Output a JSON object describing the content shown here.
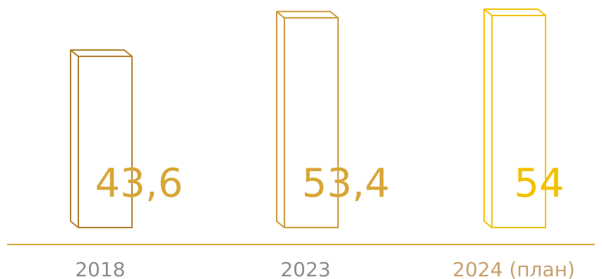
{
  "chart_data": {
    "type": "bar",
    "categories": [
      "2018",
      "2023",
      "2024 (план)"
    ],
    "values": [
      43.6,
      53.4,
      54
    ],
    "value_labels": [
      "43,6",
      "53,4",
      "54"
    ],
    "title": "",
    "xlabel": "",
    "ylabel": "",
    "ylim": [
      0,
      54
    ],
    "grid": false,
    "legend": "none",
    "style": "3d-outline-bars",
    "colors": {
      "bar_outline": [
        "#b07f2b",
        "#c99a3c",
        "#f2c100"
      ],
      "value_label": [
        "#d8a636",
        "#d8a636",
        "#f2c100"
      ],
      "category_label": [
        "#8c8c8c",
        "#8c8c8c",
        "#c8a06e"
      ],
      "axis_line": "#d4a93a"
    }
  }
}
